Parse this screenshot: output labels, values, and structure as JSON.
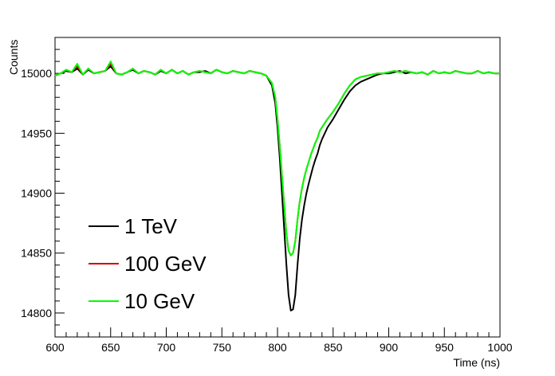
{
  "chart_data": {
    "type": "line",
    "title": "",
    "xlabel": "Time (ns)",
    "ylabel": "Counts",
    "xlim": [
      600,
      1000
    ],
    "ylim": [
      14780,
      15030
    ],
    "x_ticks": [
      "600",
      "650",
      "700",
      "750",
      "800",
      "850",
      "900",
      "950",
      "1000"
    ],
    "y_ticks": [
      "14800",
      "14850",
      "14900",
      "14950",
      "15000"
    ],
    "legend_position": "bottom-left",
    "grid": false,
    "series": [
      {
        "name": "1 TeV",
        "color": "#000000",
        "x": [
          600,
          605,
          610,
          615,
          620,
          625,
          630,
          635,
          640,
          645,
          650,
          655,
          660,
          665,
          670,
          675,
          680,
          685,
          690,
          695,
          700,
          705,
          710,
          715,
          720,
          725,
          730,
          735,
          740,
          745,
          750,
          755,
          760,
          765,
          770,
          775,
          780,
          785,
          790,
          795,
          798,
          800,
          802,
          804,
          806,
          808,
          810,
          812,
          814,
          816,
          818,
          820,
          822,
          824,
          826,
          828,
          830,
          832,
          834,
          836,
          838,
          840,
          845,
          850,
          855,
          860,
          865,
          870,
          875,
          880,
          885,
          890,
          895,
          900,
          905,
          910,
          915,
          920,
          925,
          930,
          935,
          940,
          945,
          950,
          955,
          960,
          965,
          970,
          975,
          980,
          985,
          990,
          995,
          1000
        ],
        "y": [
          14998,
          15000,
          15002,
          15001,
          15004,
          14999,
          15003,
          15000,
          15001,
          15002,
          15006,
          15000,
          14999,
          15001,
          15003,
          15000,
          15002,
          15001,
          14999,
          15002,
          15000,
          15003,
          15000,
          15002,
          14999,
          15001,
          15001,
          15002,
          15000,
          15003,
          15001,
          15000,
          15002,
          15001,
          15000,
          15002,
          15001,
          15000,
          14998,
          14990,
          14975,
          14955,
          14930,
          14900,
          14870,
          14840,
          14815,
          14802,
          14803,
          14815,
          14840,
          14862,
          14878,
          14890,
          14900,
          14908,
          14915,
          14922,
          14928,
          14933,
          14940,
          14945,
          14955,
          14962,
          14970,
          14978,
          14985,
          14990,
          14993,
          14995,
          14997,
          14999,
          15000,
          15000,
          15001,
          15002,
          15000,
          15001,
          15000,
          15001,
          14999,
          15002,
          15000,
          15001,
          15000,
          15002,
          15001,
          15000,
          15000,
          15002,
          15000,
          15001,
          15000,
          15000
        ]
      },
      {
        "name": "100 GeV",
        "color": "#d00000",
        "x": [
          600,
          605,
          610,
          615,
          620,
          625,
          630,
          635,
          640,
          645,
          650,
          655,
          660,
          665,
          670,
          675,
          680,
          685,
          690,
          695,
          700,
          705,
          710,
          715,
          720,
          725,
          730,
          735,
          740,
          745,
          750,
          755,
          760,
          765,
          770,
          775,
          780,
          785,
          790,
          795,
          798,
          800,
          802,
          804,
          806,
          808,
          810,
          812,
          814,
          816,
          818,
          820,
          822,
          824,
          826,
          828,
          830,
          832,
          834,
          836,
          838,
          840,
          845,
          850,
          855,
          860,
          865,
          870,
          875,
          880,
          885,
          890,
          895,
          900,
          905,
          910,
          915,
          920,
          925,
          930,
          935,
          940,
          945,
          950,
          955,
          960,
          965,
          970,
          975,
          980,
          985,
          990,
          995,
          1000
        ],
        "y": [
          14998,
          15000,
          15003,
          15001,
          15006,
          14999,
          15004,
          15000,
          15001,
          15002,
          15008,
          15000,
          14999,
          15001,
          15004,
          15000,
          15002,
          15001,
          14999,
          15003,
          15000,
          15003,
          15000,
          15002,
          14999,
          15001,
          15002,
          15001,
          15000,
          15003,
          15001,
          15000,
          15002,
          15001,
          15000,
          15002,
          15001,
          15000,
          14998,
          14992,
          14980,
          14962,
          14940,
          14915,
          14890,
          14866,
          14852,
          14848,
          14850,
          14860,
          14878,
          14893,
          14904,
          14913,
          14920,
          14926,
          14932,
          14937,
          14942,
          14946,
          14952,
          14955,
          14962,
          14968,
          14975,
          14983,
          14990,
          14995,
          14997,
          14998,
          14999,
          15000,
          15000,
          15001,
          15002,
          15001,
          15002,
          15001,
          15000,
          15001,
          14999,
          15002,
          15000,
          15001,
          15000,
          15002,
          15001,
          15000,
          15000,
          15002,
          15000,
          15001,
          15000,
          15000
        ]
      },
      {
        "name": "10 GeV",
        "color": "#00ff00",
        "x": [
          600,
          605,
          610,
          615,
          620,
          625,
          630,
          635,
          640,
          645,
          650,
          655,
          660,
          665,
          670,
          675,
          680,
          685,
          690,
          695,
          700,
          705,
          710,
          715,
          720,
          725,
          730,
          735,
          740,
          745,
          750,
          755,
          760,
          765,
          770,
          775,
          780,
          785,
          790,
          795,
          798,
          800,
          802,
          804,
          806,
          808,
          810,
          812,
          814,
          816,
          818,
          820,
          822,
          824,
          826,
          828,
          830,
          832,
          834,
          836,
          838,
          840,
          845,
          850,
          855,
          860,
          865,
          870,
          875,
          880,
          885,
          890,
          895,
          900,
          905,
          910,
          915,
          920,
          925,
          930,
          935,
          940,
          945,
          950,
          955,
          960,
          965,
          970,
          975,
          980,
          985,
          990,
          995,
          1000
        ],
        "y": [
          14998,
          15000,
          15003,
          15001,
          15008,
          14999,
          15004,
          15000,
          15001,
          15002,
          15010,
          15000,
          14999,
          15001,
          15004,
          15000,
          15002,
          15001,
          14999,
          15003,
          15000,
          15003,
          15000,
          15002,
          14999,
          15001,
          15002,
          15001,
          15000,
          15003,
          15001,
          15000,
          15002,
          15001,
          15000,
          15002,
          15001,
          15000,
          14998,
          14992,
          14980,
          14962,
          14940,
          14915,
          14890,
          14866,
          14852,
          14848,
          14850,
          14860,
          14878,
          14893,
          14904,
          14913,
          14920,
          14926,
          14932,
          14937,
          14942,
          14946,
          14952,
          14955,
          14962,
          14968,
          14975,
          14983,
          14990,
          14995,
          14997,
          14998,
          14999,
          15000,
          15000,
          15001,
          15002,
          15001,
          15002,
          15001,
          15000,
          15001,
          14999,
          15002,
          15000,
          15001,
          15000,
          15002,
          15001,
          15000,
          15000,
          15002,
          15000,
          15001,
          15000,
          15000
        ]
      }
    ]
  }
}
